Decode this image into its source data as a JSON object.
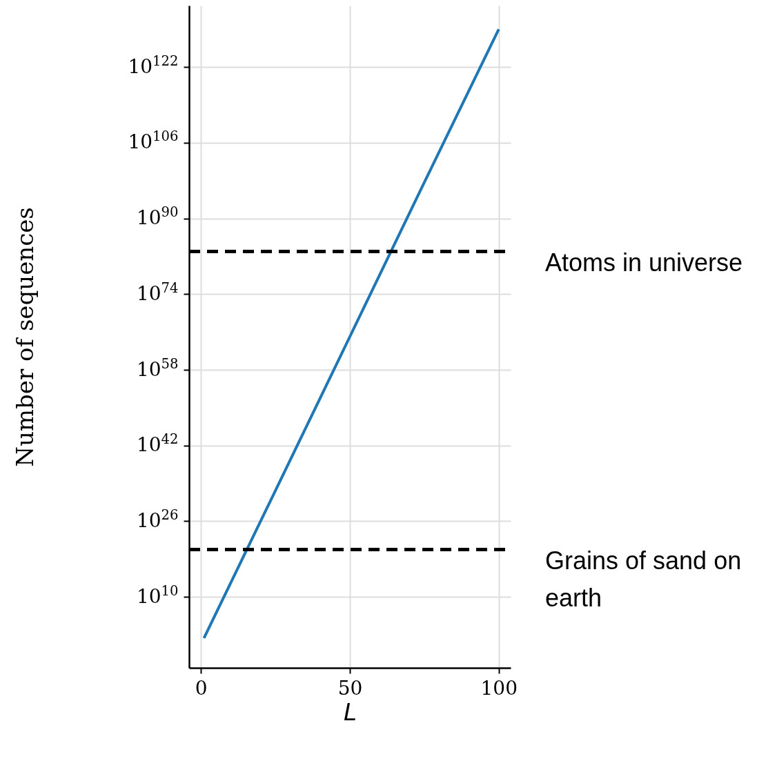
{
  "chart_data": {
    "type": "line",
    "xlabel": "L",
    "ylabel": "Number of sequences",
    "x": [
      1,
      25,
      50,
      75,
      100
    ],
    "series": [
      {
        "color": "#1f77b4",
        "values": [
          20.0,
          3e+32,
          1e+65,
          4e+97,
          1e+130
        ]
      }
    ],
    "log": "y",
    "xlim": [
      -4,
      104
    ],
    "xticks": [
      0,
      50,
      100
    ],
    "ylim": [
      1e-05,
      1e+135
    ],
    "yticks": [
      {
        "value": 10000000000.0,
        "label": "10$^{10}$"
      },
      {
        "value": 1e+26,
        "label": "10$^{26}$"
      },
      {
        "value": 1e+42,
        "label": "10$^{42}$"
      },
      {
        "value": 1e+58,
        "label": "10$^{58}$"
      },
      {
        "value": 1e+74,
        "label": "10$^{74}$"
      },
      {
        "value": 1e+90,
        "label": "10$^{90}$"
      },
      {
        "value": 1e+106,
        "label": "10$^{106}$"
      },
      {
        "value": 1e+122,
        "label": "10$^{122}$"
      }
    ],
    "grid": true,
    "ref_lines": [
      {
        "axis": "y",
        "value": 1e+83,
        "label": "Atoms in universe",
        "color": "#000000",
        "line_style": "dashed"
      },
      {
        "axis": "y",
        "value": 1e+20,
        "label": "Grains of sand on earth",
        "color": "#000000",
        "line_style": "dashed"
      }
    ]
  }
}
